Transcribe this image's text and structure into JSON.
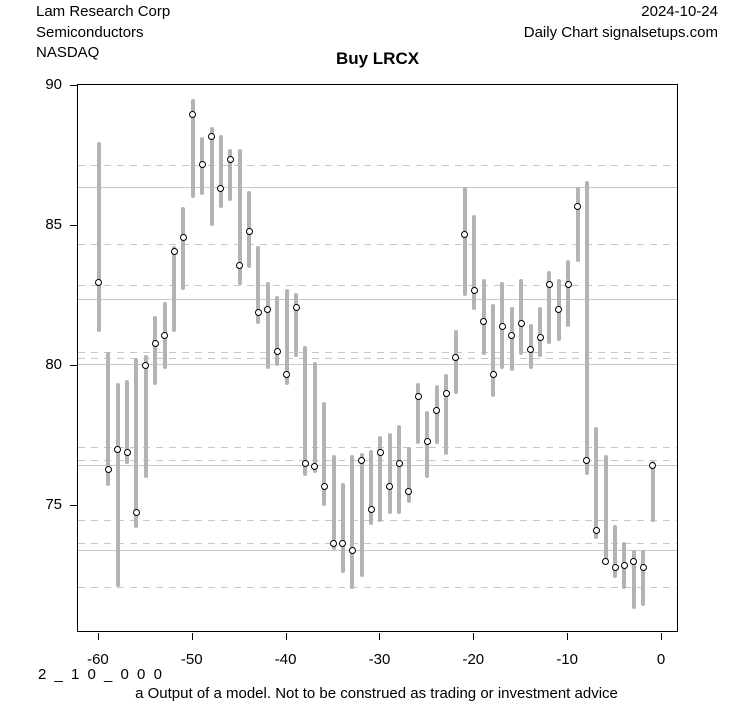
{
  "header": {
    "company": "Lam Research Corp",
    "sector": "Semiconductors",
    "exchange": "NASDAQ",
    "date": "2024-10-24",
    "source": "Daily Chart signalsetups.com"
  },
  "title": "Buy LRCX",
  "footer": {
    "model_code": "2 _ 1 0 _ 0 0 0",
    "disclaimer": "a Output of a model. Not to be construed as trading or investment advice"
  },
  "chart_data": {
    "type": "bar",
    "subtype": "daily high-low range bars with open-circle close markers",
    "title": "Buy LRCX",
    "xlabel": "",
    "ylabel": "",
    "legend": "none",
    "xlim": [
      -62.23,
      1.49
    ],
    "ylim": [
      70.55,
      90.05
    ],
    "x_ticks": [
      -60,
      -50,
      -40,
      -30,
      -20,
      -10,
      0
    ],
    "y_ticks": [
      75,
      80,
      85,
      90
    ],
    "gridlines_solid": [
      86.4,
      82.4,
      80.05,
      76.45,
      73.4
    ],
    "gridlines_dashed": [
      87.2,
      84.35,
      82.9,
      80.5,
      80.3,
      77.1,
      76.65,
      74.5,
      73.65,
      72.1
    ],
    "bar_color": "#b3b3b3",
    "grid_color": "#c7c7c7",
    "days": [
      -60,
      -59,
      -58,
      -57,
      -56,
      -55,
      -54,
      -53,
      -52,
      -51,
      -50,
      -49,
      -48,
      -47,
      -46,
      -45,
      -44,
      -43,
      -42,
      -41,
      -40,
      -39,
      -38,
      -37,
      -36,
      -35,
      -34,
      -33,
      -32,
      -31,
      -30,
      -29,
      -28,
      -27,
      -26,
      -25,
      -24,
      -23,
      -22,
      -21,
      -20,
      -19,
      -18,
      -17,
      -16,
      -15,
      -14,
      -13,
      -12,
      -11,
      -10,
      -9,
      -8,
      -7,
      -6,
      -5,
      -4,
      -3,
      -2,
      -1
    ],
    "high": [
      88.0,
      80.5,
      79.4,
      79.5,
      80.3,
      80.4,
      81.8,
      82.3,
      84.3,
      85.7,
      89.55,
      88.2,
      88.55,
      88.25,
      87.75,
      87.75,
      86.25,
      84.3,
      83.0,
      82.5,
      82.75,
      82.6,
      80.7,
      80.15,
      78.7,
      76.8,
      75.8,
      76.8,
      76.9,
      77.0,
      77.5,
      77.6,
      77.9,
      77.1,
      79.4,
      78.4,
      79.3,
      79.7,
      81.3,
      86.4,
      85.4,
      83.1,
      82.2,
      83.0,
      82.1,
      83.1,
      81.5,
      82.1,
      83.4,
      83.1,
      83.8,
      86.4,
      86.6,
      77.8,
      76.8,
      74.3,
      73.7,
      73.4,
      73.4,
      76.6
    ],
    "low": [
      81.2,
      75.7,
      72.1,
      76.5,
      74.2,
      76.0,
      79.3,
      79.9,
      81.2,
      82.7,
      86.0,
      86.1,
      85.0,
      85.65,
      85.9,
      82.9,
      83.5,
      81.5,
      79.9,
      80.0,
      79.3,
      80.3,
      76.05,
      76.15,
      75.0,
      73.4,
      72.6,
      72.0,
      72.45,
      74.3,
      74.4,
      74.7,
      74.7,
      75.1,
      77.2,
      76.0,
      77.2,
      76.8,
      79.0,
      82.5,
      82.0,
      80.4,
      78.9,
      79.9,
      79.8,
      80.4,
      79.9,
      80.3,
      80.8,
      80.9,
      81.4,
      83.7,
      76.1,
      73.8,
      72.9,
      72.4,
      72.0,
      71.3,
      71.4,
      74.4
    ],
    "close": [
      83.0,
      76.3,
      77.0,
      76.9,
      74.75,
      80.0,
      80.8,
      81.1,
      84.1,
      84.6,
      89.0,
      87.2,
      88.2,
      86.35,
      87.4,
      83.6,
      84.8,
      81.9,
      82.0,
      80.5,
      79.7,
      82.1,
      76.5,
      76.4,
      75.7,
      73.65,
      73.65,
      73.4,
      76.6,
      74.85,
      76.9,
      75.7,
      76.5,
      75.5,
      78.9,
      77.3,
      78.4,
      79.0,
      80.3,
      84.7,
      82.7,
      81.6,
      79.7,
      81.4,
      81.1,
      81.5,
      80.6,
      81.0,
      82.9,
      82.0,
      82.9,
      85.7,
      76.6,
      74.1,
      73.0,
      72.8,
      72.85,
      73.0,
      72.8,
      76.45
    ]
  }
}
